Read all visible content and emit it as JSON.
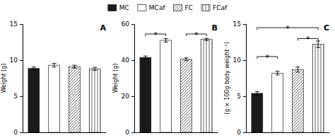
{
  "chart_data": [
    {
      "type": "bar",
      "title": "A",
      "categories": [
        "MC",
        "MCaf",
        "FC",
        "FCaf"
      ],
      "values": [
        8.85,
        9.3,
        9.1,
        8.8
      ],
      "errors": [
        0.2,
        0.25,
        0.2,
        0.2
      ],
      "colors": [
        "#1a1a1a",
        "#ffffff",
        "#ffffff",
        "#ffffff"
      ],
      "ylabel": "Weight (g)",
      "ylim": [
        0,
        15
      ],
      "yticks": [
        0,
        5,
        10,
        15
      ],
      "tick_labels": "y",
      "legend": "top",
      "annotations": []
    },
    {
      "type": "bar",
      "title": "B",
      "categories": [
        "MC",
        "MCaf",
        "FC",
        "FCaf"
      ],
      "values": [
        41.5,
        51.0,
        40.5,
        51.5
      ],
      "errors": [
        0.8,
        1.0,
        0.8,
        0.6
      ],
      "colors": [
        "#1a1a1a",
        "#ffffff",
        "#ffffff",
        "#ffffff"
      ],
      "ylabel": "Weight (g)",
      "ylim": [
        0,
        60
      ],
      "yticks": [
        0,
        20,
        40,
        60
      ],
      "tick_labels": "y",
      "annotations": [
        {
          "from": "MC",
          "to": "MCaf",
          "y": 54.5,
          "label": "*"
        },
        {
          "from": "FC",
          "to": "FCaf",
          "y": 54.5,
          "label": "*"
        }
      ]
    },
    {
      "type": "bar",
      "title": "C",
      "categories": [
        "MC",
        "MCaf",
        "FC",
        "FCaf"
      ],
      "values": [
        5.4,
        8.2,
        8.7,
        12.2
      ],
      "errors": [
        0.25,
        0.25,
        0.35,
        0.45
      ],
      "colors": [
        "#1a1a1a",
        "#ffffff",
        "#ffffff",
        "#ffffff"
      ],
      "ylabel": "(g × 100g body weight⁻¹)",
      "ylim": [
        0,
        15
      ],
      "yticks": [
        0,
        5,
        10,
        15
      ],
      "tick_labels": "y",
      "annotations": [
        {
          "from": "MC",
          "to": "MCaf",
          "y": 10.5,
          "label": "*"
        },
        {
          "from": "FC",
          "to": "FCaf",
          "y": 13.0,
          "label": "*"
        },
        {
          "from": "MC",
          "to": "FCaf",
          "y": 14.5,
          "label": "*"
        }
      ]
    }
  ]
}
